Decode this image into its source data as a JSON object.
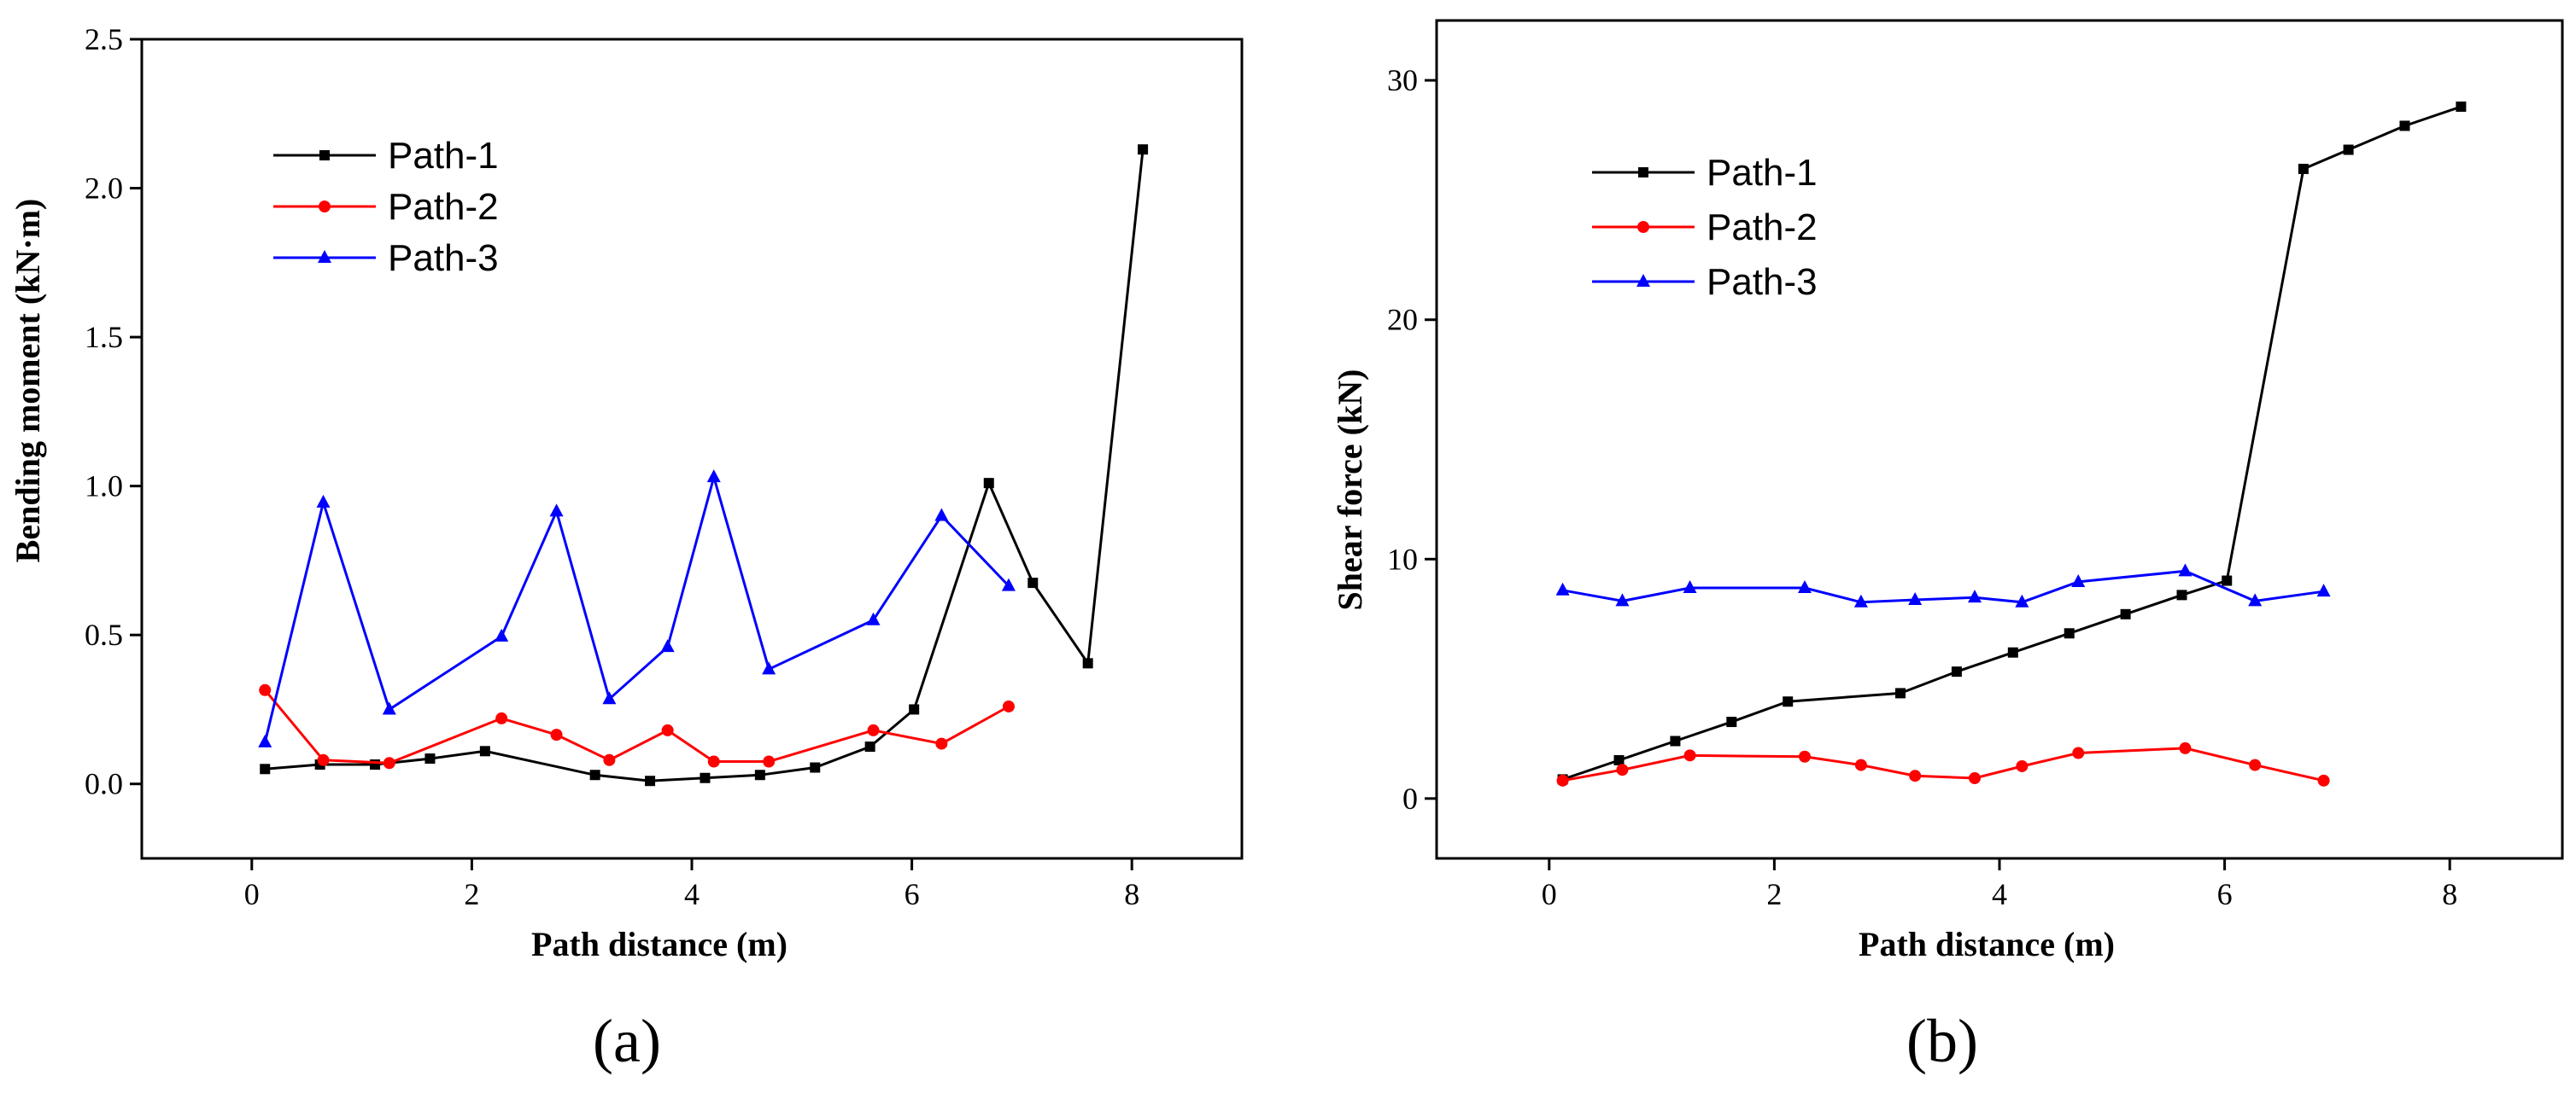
{
  "chart_data": [
    {
      "type": "line",
      "panel": "a",
      "xlabel": "Path distance (m)",
      "ylabel": "Bending moment (kN·m)",
      "xlim": [
        -1,
        9
      ],
      "ylim": [
        -0.25,
        2.5
      ],
      "xticks": [
        0,
        2,
        4,
        6,
        8
      ],
      "xtick_labels": [
        "0",
        "2",
        "4",
        "6",
        "8"
      ],
      "yticks": [
        0.0,
        0.5,
        1.0,
        1.5,
        2.0,
        2.5
      ],
      "ytick_labels": [
        "0.0",
        "0.5",
        "1.0",
        "1.5",
        "2.0",
        "2.5"
      ],
      "grid": false,
      "legend_position": "top-left",
      "series": [
        {
          "name": "Path-1",
          "color": "#000000",
          "marker": "square",
          "x": [
            0.12,
            0.62,
            1.12,
            1.62,
            2.12,
            3.12,
            3.62,
            4.12,
            4.62,
            5.12,
            5.62,
            6.02,
            6.7,
            7.1,
            7.6,
            8.1
          ],
          "y": [
            0.05,
            0.065,
            0.065,
            0.085,
            0.11,
            0.03,
            0.01,
            0.02,
            0.03,
            0.055,
            0.125,
            0.25,
            1.01,
            0.675,
            0.405,
            2.13
          ]
        },
        {
          "name": "Path-2",
          "color": "#ff0000",
          "marker": "circle",
          "x": [
            0.12,
            0.65,
            1.25,
            2.27,
            2.77,
            3.25,
            3.78,
            4.2,
            4.7,
            5.65,
            6.27,
            6.88
          ],
          "y": [
            0.315,
            0.08,
            0.07,
            0.22,
            0.165,
            0.08,
            0.18,
            0.075,
            0.075,
            0.18,
            0.135,
            0.26
          ]
        },
        {
          "name": "Path-3",
          "color": "#0000ff",
          "marker": "triangle",
          "x": [
            0.12,
            0.65,
            1.25,
            2.27,
            2.77,
            3.25,
            3.78,
            4.2,
            4.7,
            5.65,
            6.27,
            6.88
          ],
          "y": [
            0.14,
            0.945,
            0.25,
            0.495,
            0.915,
            0.285,
            0.46,
            1.03,
            0.385,
            0.55,
            0.9,
            0.665
          ]
        }
      ]
    },
    {
      "type": "line",
      "panel": "b",
      "xlabel": "Path distance (m)",
      "ylabel": "Shear force (kN)",
      "xlim": [
        -1,
        9
      ],
      "ylim": [
        -2.5,
        32.5
      ],
      "xticks": [
        0,
        2,
        4,
        6,
        8
      ],
      "xtick_labels": [
        "0",
        "2",
        "4",
        "6",
        "8"
      ],
      "yticks": [
        0,
        10,
        20,
        30
      ],
      "ytick_labels": [
        "0",
        "10",
        "20",
        "30"
      ],
      "grid": false,
      "legend_position": "top-left",
      "series": [
        {
          "name": "Path-1",
          "color": "#000000",
          "marker": "square",
          "x": [
            0.12,
            0.62,
            1.12,
            1.62,
            2.12,
            3.12,
            3.62,
            4.12,
            4.62,
            5.12,
            5.62,
            6.02,
            6.7,
            7.1,
            7.6,
            8.1
          ],
          "y": [
            0.8,
            1.6,
            2.4,
            3.2,
            4.05,
            4.4,
            5.3,
            6.1,
            6.9,
            7.7,
            8.5,
            9.1,
            26.3,
            27.1,
            28.1,
            28.9
          ]
        },
        {
          "name": "Path-2",
          "color": "#ff0000",
          "marker": "circle",
          "x": [
            0.12,
            0.65,
            1.25,
            2.27,
            2.77,
            3.25,
            3.78,
            4.2,
            4.7,
            5.65,
            6.27,
            6.88
          ],
          "y": [
            0.75,
            1.2,
            1.8,
            1.75,
            1.4,
            0.95,
            0.85,
            1.35,
            1.9,
            2.1,
            1.4,
            0.75
          ]
        },
        {
          "name": "Path-3",
          "color": "#0000ff",
          "marker": "triangle",
          "x": [
            0.12,
            0.65,
            1.25,
            2.27,
            2.77,
            3.25,
            3.78,
            4.2,
            4.7,
            5.65,
            6.27,
            6.88
          ],
          "y": [
            8.7,
            8.25,
            8.8,
            8.8,
            8.2,
            8.3,
            8.4,
            8.2,
            9.05,
            9.5,
            8.25,
            8.65
          ]
        }
      ]
    }
  ],
  "panel_labels": [
    "(a)",
    "(b)"
  ]
}
